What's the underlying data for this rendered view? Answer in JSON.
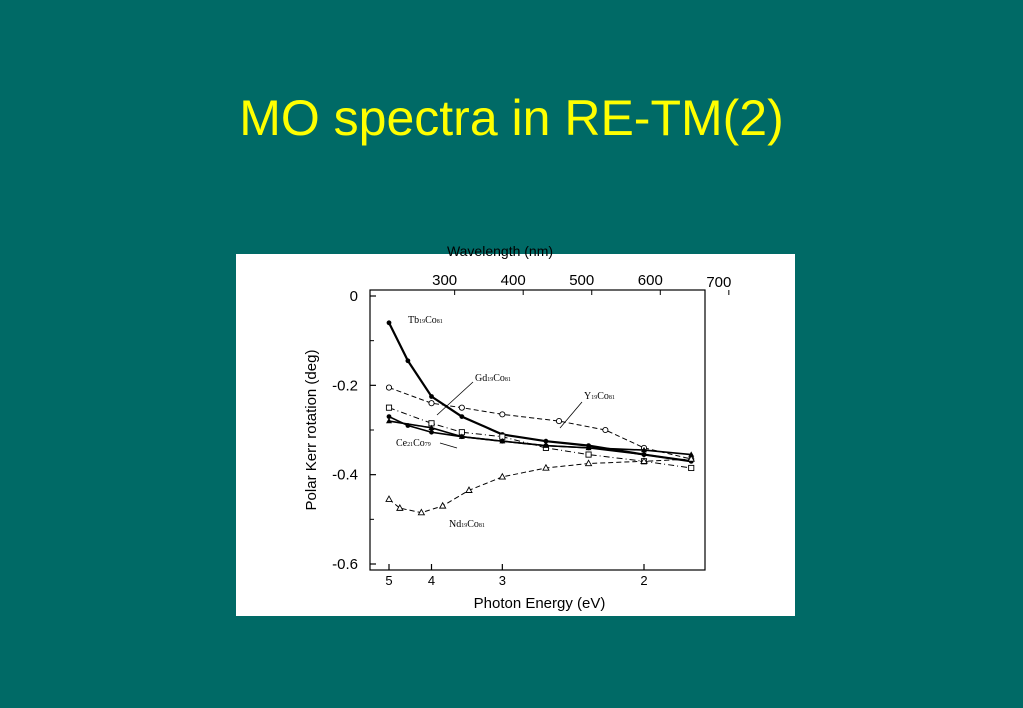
{
  "slide": {
    "title": "MO spectra in RE-TM(2)"
  },
  "chart_data": {
    "type": "line",
    "title": "",
    "xlabel": "Photon Energy (eV)",
    "x2label": "Wavelength (nm)",
    "ylabel": "Polar Kerr rotation (deg)",
    "xlim": [
      5.0,
      1.8
    ],
    "ylim": [
      0,
      -0.6
    ],
    "x_ticks": [
      5,
      4,
      3,
      2
    ],
    "x2_ticks": [
      300,
      400,
      500,
      600,
      700
    ],
    "y_ticks": [
      0,
      -0.2,
      -0.4,
      -0.6
    ],
    "y_tick_labels": [
      "0",
      "-0.2",
      "-0.4",
      "-0.6"
    ],
    "series": [
      {
        "name": "Tb19Co81",
        "label_main": "Tb",
        "label_sub1": "19",
        "label_mid": "Co",
        "label_sub2": "81",
        "marker": "filled-circle",
        "line": "solid-thick",
        "x": [
          5.0,
          4.5,
          4.0,
          3.5,
          3.0,
          2.6,
          2.3,
          2.0,
          1.8
        ],
        "y": [
          -0.06,
          -0.145,
          -0.225,
          -0.27,
          -0.31,
          -0.325,
          -0.335,
          -0.355,
          -0.37
        ]
      },
      {
        "name": "Gd19Co81",
        "label_main": "Gd",
        "label_sub1": "19",
        "label_mid": "Co",
        "label_sub2": "81",
        "marker": "filled-circle",
        "line": "solid",
        "x": [
          5.0,
          4.5,
          4.0,
          3.5,
          3.0,
          2.6,
          2.3,
          2.0,
          1.8
        ],
        "y": [
          -0.27,
          -0.29,
          -0.305,
          -0.315,
          -0.325,
          -0.335,
          -0.34,
          -0.355,
          -0.37
        ]
      },
      {
        "name": "Y19Co81",
        "label_main": "Y",
        "label_sub1": "19",
        "label_mid": "Co",
        "label_sub2": "81",
        "marker": "open-circle",
        "line": "dashed",
        "x": [
          5.0,
          4.0,
          3.5,
          3.0,
          2.5,
          2.2,
          2.0,
          1.8
        ],
        "y": [
          -0.205,
          -0.24,
          -0.25,
          -0.265,
          -0.28,
          -0.3,
          -0.34,
          -0.365
        ]
      },
      {
        "name": "Ce21Co79",
        "label_main": "Ce",
        "label_sub1": "21",
        "label_mid": "Co",
        "label_sub2": "79",
        "marker": "open-square",
        "line": "dash-dot",
        "x": [
          5.0,
          4.0,
          3.5,
          3.0,
          2.6,
          2.3,
          2.0,
          1.8
        ],
        "y": [
          -0.25,
          -0.285,
          -0.305,
          -0.315,
          -0.34,
          -0.355,
          -0.37,
          -0.385
        ]
      },
      {
        "name": "Ce21Co79-tri",
        "label_main": "",
        "label_sub1": "",
        "label_mid": "",
        "label_sub2": "",
        "marker": "filled-triangle",
        "line": "solid",
        "x": [
          5.0,
          4.0,
          3.5,
          3.0,
          2.6,
          2.3,
          2.0,
          1.8
        ],
        "y": [
          -0.28,
          -0.295,
          -0.315,
          -0.325,
          -0.335,
          -0.34,
          -0.345,
          -0.355
        ]
      },
      {
        "name": "Nd19Co81",
        "label_main": "Nd",
        "label_sub1": "19",
        "label_mid": "Co",
        "label_sub2": "81",
        "marker": "open-triangle",
        "line": "dashed",
        "x": [
          5.0,
          4.7,
          4.2,
          3.8,
          3.4,
          3.0,
          2.6,
          2.3,
          2.0,
          1.8
        ],
        "y": [
          -0.455,
          -0.475,
          -0.485,
          -0.47,
          -0.435,
          -0.405,
          -0.385,
          -0.375,
          -0.37,
          -0.365
        ]
      }
    ],
    "grid": false
  }
}
